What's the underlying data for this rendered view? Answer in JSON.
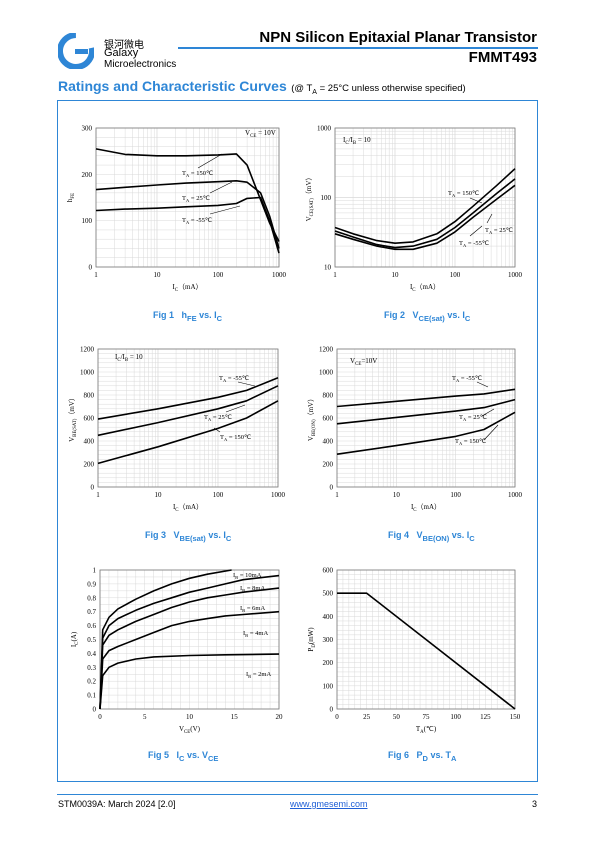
{
  "brand": {
    "cn_name": "银河微电",
    "name_line1": "Galaxy",
    "name_line2": "Microelectronics",
    "color": "#2e86d6"
  },
  "header": {
    "title": "NPN Silicon Epitaxial Planar Transistor",
    "part": "FMMT493"
  },
  "section": {
    "title": "Ratings and Characteristic Curves",
    "cond_prefix": "(@ T",
    "cond_sub": "A",
    "cond_suffix": " = 25°C unless otherwise specified)"
  },
  "figures": [
    {
      "num": "Fig 1",
      "main": "h",
      "sub": "FE",
      "tail": " vs. I",
      "tail_sub": "C"
    },
    {
      "num": "Fig 2",
      "main": "V",
      "sub": "CE(sat)",
      "tail": " vs. I",
      "tail_sub": "C"
    },
    {
      "num": "Fig 3",
      "main": "V",
      "sub": "BE(sat)",
      "tail": " vs. I",
      "tail_sub": "C"
    },
    {
      "num": "Fig 4",
      "main": "V",
      "sub": "BE(ON)",
      "tail": " vs. I",
      "tail_sub": "C"
    },
    {
      "num": "Fig 5",
      "main": "I",
      "sub": "C",
      "tail": " vs. V",
      "tail_sub": "CE"
    },
    {
      "num": "Fig 6",
      "main": "P",
      "sub": "D",
      "tail": " vs. T",
      "tail_sub": "A"
    }
  ],
  "footer": {
    "doc": "STM0039A: March 2024 [2.0]",
    "url": "www.gmesemi.com",
    "page": "3"
  },
  "chart_data": [
    {
      "type": "line",
      "xscale": "log",
      "xlim": [
        1,
        1000
      ],
      "ylim": [
        0,
        300
      ],
      "xticks": [
        "1",
        "10",
        "100",
        "1000"
      ],
      "yticks": [
        "0",
        "100",
        "200",
        "300"
      ],
      "xlabel": "I",
      "xlabel_sub": "C",
      "xlabel_unit": "（mA）",
      "ylabel": "h",
      "ylabel_sub": "FE",
      "notes": [
        {
          "main": "V",
          "sub": "CE",
          "rest": " = 10V"
        }
      ],
      "series": [
        {
          "name": "T_A = 150℃",
          "label_main": "T",
          "label_sub": "A",
          "label_rest": " = 150℃",
          "x": [
            1,
            3,
            10,
            30,
            100,
            200,
            300,
            500,
            700,
            1000
          ],
          "y": [
            255,
            243,
            240,
            240,
            242,
            244,
            220,
            145,
            95,
            55
          ]
        },
        {
          "name": "T_A = 25℃",
          "label_main": "T",
          "label_sub": "A",
          "label_rest": " = 25℃",
          "x": [
            1,
            3,
            10,
            30,
            100,
            200,
            300,
            500,
            700,
            1000
          ],
          "y": [
            167,
            172,
            177,
            181,
            184,
            186,
            183,
            160,
            110,
            40
          ]
        },
        {
          "name": "T_A = -55℃",
          "label_main": "T",
          "label_sub": "A",
          "label_rest": " = -55℃",
          "x": [
            1,
            3,
            10,
            30,
            100,
            200,
            300,
            500,
            700,
            1000
          ],
          "y": [
            122,
            125,
            127,
            130,
            133,
            137,
            148,
            150,
            100,
            30
          ]
        }
      ]
    },
    {
      "type": "line",
      "xscale": "log",
      "yscale": "log",
      "xlim": [
        1,
        1000
      ],
      "ylim": [
        10,
        1000
      ],
      "xticks": [
        "1",
        "10",
        "100",
        "1000"
      ],
      "yticks": [
        "10",
        "100",
        "1000"
      ],
      "xlabel": "I",
      "xlabel_sub": "C",
      "xlabel_unit": "（mA）",
      "ylabel": "V",
      "ylabel_sub": "CE(SAT)",
      "ylabel_unit": "（mV）",
      "notes": [
        {
          "main": "I",
          "sub": "C",
          "rest": "/I",
          "main2": "B",
          "rest2": " = 10"
        }
      ],
      "series": [
        {
          "name": "T_A = 150℃",
          "label_main": "T",
          "label_sub": "A",
          "label_rest": " = 150℃",
          "x": [
            1,
            2,
            5,
            10,
            20,
            50,
            100,
            200,
            500,
            1000
          ],
          "y": [
            37,
            30,
            24,
            22,
            23,
            30,
            45,
            75,
            150,
            260
          ]
        },
        {
          "name": "T_A = 25℃",
          "label_main": "T",
          "label_sub": "A",
          "label_rest": " = 25℃",
          "x": [
            1,
            2,
            5,
            10,
            20,
            50,
            100,
            200,
            500,
            1000
          ],
          "y": [
            33,
            27,
            21,
            19,
            20,
            25,
            37,
            60,
            115,
            185
          ]
        },
        {
          "name": "T_A = -55℃",
          "label_main": "T",
          "label_sub": "A",
          "label_rest": " = -55℃",
          "x": [
            1,
            2,
            5,
            10,
            20,
            50,
            100,
            200,
            500,
            1000
          ],
          "y": [
            30,
            25,
            20,
            18,
            18,
            22,
            32,
            52,
            95,
            150
          ]
        }
      ]
    },
    {
      "type": "line",
      "xscale": "log",
      "xlim": [
        1,
        1000
      ],
      "ylim": [
        0,
        1200
      ],
      "xticks": [
        "1",
        "10",
        "100",
        "1000"
      ],
      "yticks": [
        "0",
        "200",
        "400",
        "600",
        "800",
        "1000",
        "1200"
      ],
      "xlabel": "I",
      "xlabel_sub": "C",
      "xlabel_unit": "（mA）",
      "ylabel": "V",
      "ylabel_sub": "BE(SAT)",
      "ylabel_unit": "（mV）",
      "notes": [
        {
          "main": "I",
          "sub": "C",
          "rest": "/I",
          "main2": "B",
          "rest2": " = 10"
        }
      ],
      "series": [
        {
          "name": "T_A = -55℃",
          "label_main": "T",
          "label_sub": "A",
          "label_rest": " = -55℃",
          "x": [
            1,
            10,
            100,
            300,
            1000
          ],
          "y": [
            590,
            680,
            780,
            840,
            950
          ]
        },
        {
          "name": "T_A = 25℃",
          "label_main": "T",
          "label_sub": "A",
          "label_rest": " = 25℃",
          "x": [
            1,
            10,
            100,
            300,
            1000
          ],
          "y": [
            450,
            560,
            680,
            750,
            880
          ]
        },
        {
          "name": "T_A = 150℃",
          "label_main": "T",
          "label_sub": "A",
          "label_rest": " = 150℃",
          "x": [
            1,
            10,
            100,
            300,
            1000
          ],
          "y": [
            205,
            350,
            510,
            600,
            750
          ]
        }
      ]
    },
    {
      "type": "line",
      "xscale": "log",
      "xlim": [
        1,
        1000
      ],
      "ylim": [
        0,
        1200
      ],
      "xticks": [
        "1",
        "10",
        "100",
        "1000"
      ],
      "yticks": [
        "0",
        "200",
        "400",
        "600",
        "800",
        "1000",
        "1200"
      ],
      "xlabel": "I",
      "xlabel_sub": "C",
      "xlabel_unit": "（mA）",
      "ylabel": "V",
      "ylabel_sub": "BE(ON)",
      "ylabel_unit": "（mV）",
      "notes": [
        {
          "main": "V",
          "sub": "CE",
          "rest": "=10V"
        }
      ],
      "series": [
        {
          "name": "T_A = -55℃",
          "label_main": "T",
          "label_sub": "A",
          "label_rest": " = -55℃",
          "x": [
            1,
            10,
            100,
            300,
            1000
          ],
          "y": [
            700,
            745,
            790,
            810,
            850
          ]
        },
        {
          "name": "T_A = 25℃",
          "label_main": "T",
          "label_sub": "A",
          "label_rest": " = 25℃",
          "x": [
            1,
            10,
            100,
            300,
            1000
          ],
          "y": [
            550,
            605,
            660,
            690,
            760
          ]
        },
        {
          "name": "T_A = 150℃",
          "label_main": "T",
          "label_sub": "A",
          "label_rest": " = 150℃",
          "x": [
            1,
            10,
            100,
            300,
            1000
          ],
          "y": [
            285,
            360,
            440,
            500,
            650
          ]
        }
      ]
    },
    {
      "type": "line",
      "xlim": [
        0,
        20
      ],
      "ylim": [
        0,
        1
      ],
      "xticks": [
        "0",
        "5",
        "10",
        "15",
        "20"
      ],
      "yticks": [
        "0",
        "0.1",
        "0.2",
        "0.3",
        "0.4",
        "0.5",
        "0.6",
        "0.7",
        "0.8",
        "0.9",
        "1"
      ],
      "xlabel": "V",
      "xlabel_sub": "CE",
      "xlabel_unit": "(V)",
      "ylabel": "I",
      "ylabel_sub": "C",
      "ylabel_unit": "(A)",
      "series": [
        {
          "name": "I_B = 10mA",
          "label_main": "I",
          "label_sub": "B",
          "label_rest": " = 10mA",
          "x": [
            0,
            0.3,
            1,
            2,
            4,
            6,
            8,
            10,
            12,
            14.7
          ],
          "y": [
            0,
            0.57,
            0.66,
            0.72,
            0.79,
            0.85,
            0.9,
            0.94,
            0.97,
            1.0
          ]
        },
        {
          "name": "I_B = 8mA",
          "label_main": "I",
          "label_sub": "B",
          "label_rest": " = 8mA",
          "x": [
            0,
            0.3,
            1,
            2,
            4,
            6,
            8,
            10,
            12,
            14,
            16,
            20
          ],
          "y": [
            0,
            0.51,
            0.6,
            0.65,
            0.71,
            0.76,
            0.8,
            0.84,
            0.87,
            0.9,
            0.93,
            0.96
          ]
        },
        {
          "name": "I_B = 6mA",
          "label_main": "I",
          "label_sub": "B",
          "label_rest": " = 6mA",
          "x": [
            0,
            0.3,
            1,
            2,
            4,
            6,
            8,
            10,
            12,
            14,
            16,
            20
          ],
          "y": [
            0,
            0.46,
            0.53,
            0.57,
            0.63,
            0.68,
            0.73,
            0.77,
            0.8,
            0.82,
            0.84,
            0.87
          ]
        },
        {
          "name": "I_B = 4mA",
          "label_main": "I",
          "label_sub": "B",
          "label_rest": " = 4mA",
          "x": [
            0,
            0.3,
            1,
            2,
            4,
            6,
            8,
            10,
            12,
            14,
            16,
            20
          ],
          "y": [
            0,
            0.36,
            0.42,
            0.45,
            0.5,
            0.55,
            0.6,
            0.63,
            0.65,
            0.67,
            0.68,
            0.7
          ]
        },
        {
          "name": "I_B = 2mA",
          "label_main": "I",
          "label_sub": "B",
          "label_rest": " = 2mA",
          "x": [
            0,
            0.3,
            1,
            2,
            4,
            6,
            10,
            14,
            20
          ],
          "y": [
            0,
            0.24,
            0.3,
            0.33,
            0.36,
            0.375,
            0.385,
            0.39,
            0.395
          ]
        }
      ]
    },
    {
      "type": "line",
      "xlim": [
        0,
        150
      ],
      "ylim": [
        0,
        600
      ],
      "xticks": [
        "0",
        "25",
        "50",
        "75",
        "100",
        "125",
        "150"
      ],
      "yticks": [
        "0",
        "100",
        "200",
        "300",
        "400",
        "500",
        "600"
      ],
      "xlabel": "T",
      "xlabel_sub": "A",
      "xlabel_unit": "(℃)",
      "ylabel": "P",
      "ylabel_sub": "D",
      "ylabel_unit": "(mW)",
      "series": [
        {
          "name": "",
          "x": [
            0,
            25,
            150
          ],
          "y": [
            500,
            500,
            0
          ]
        }
      ]
    }
  ]
}
